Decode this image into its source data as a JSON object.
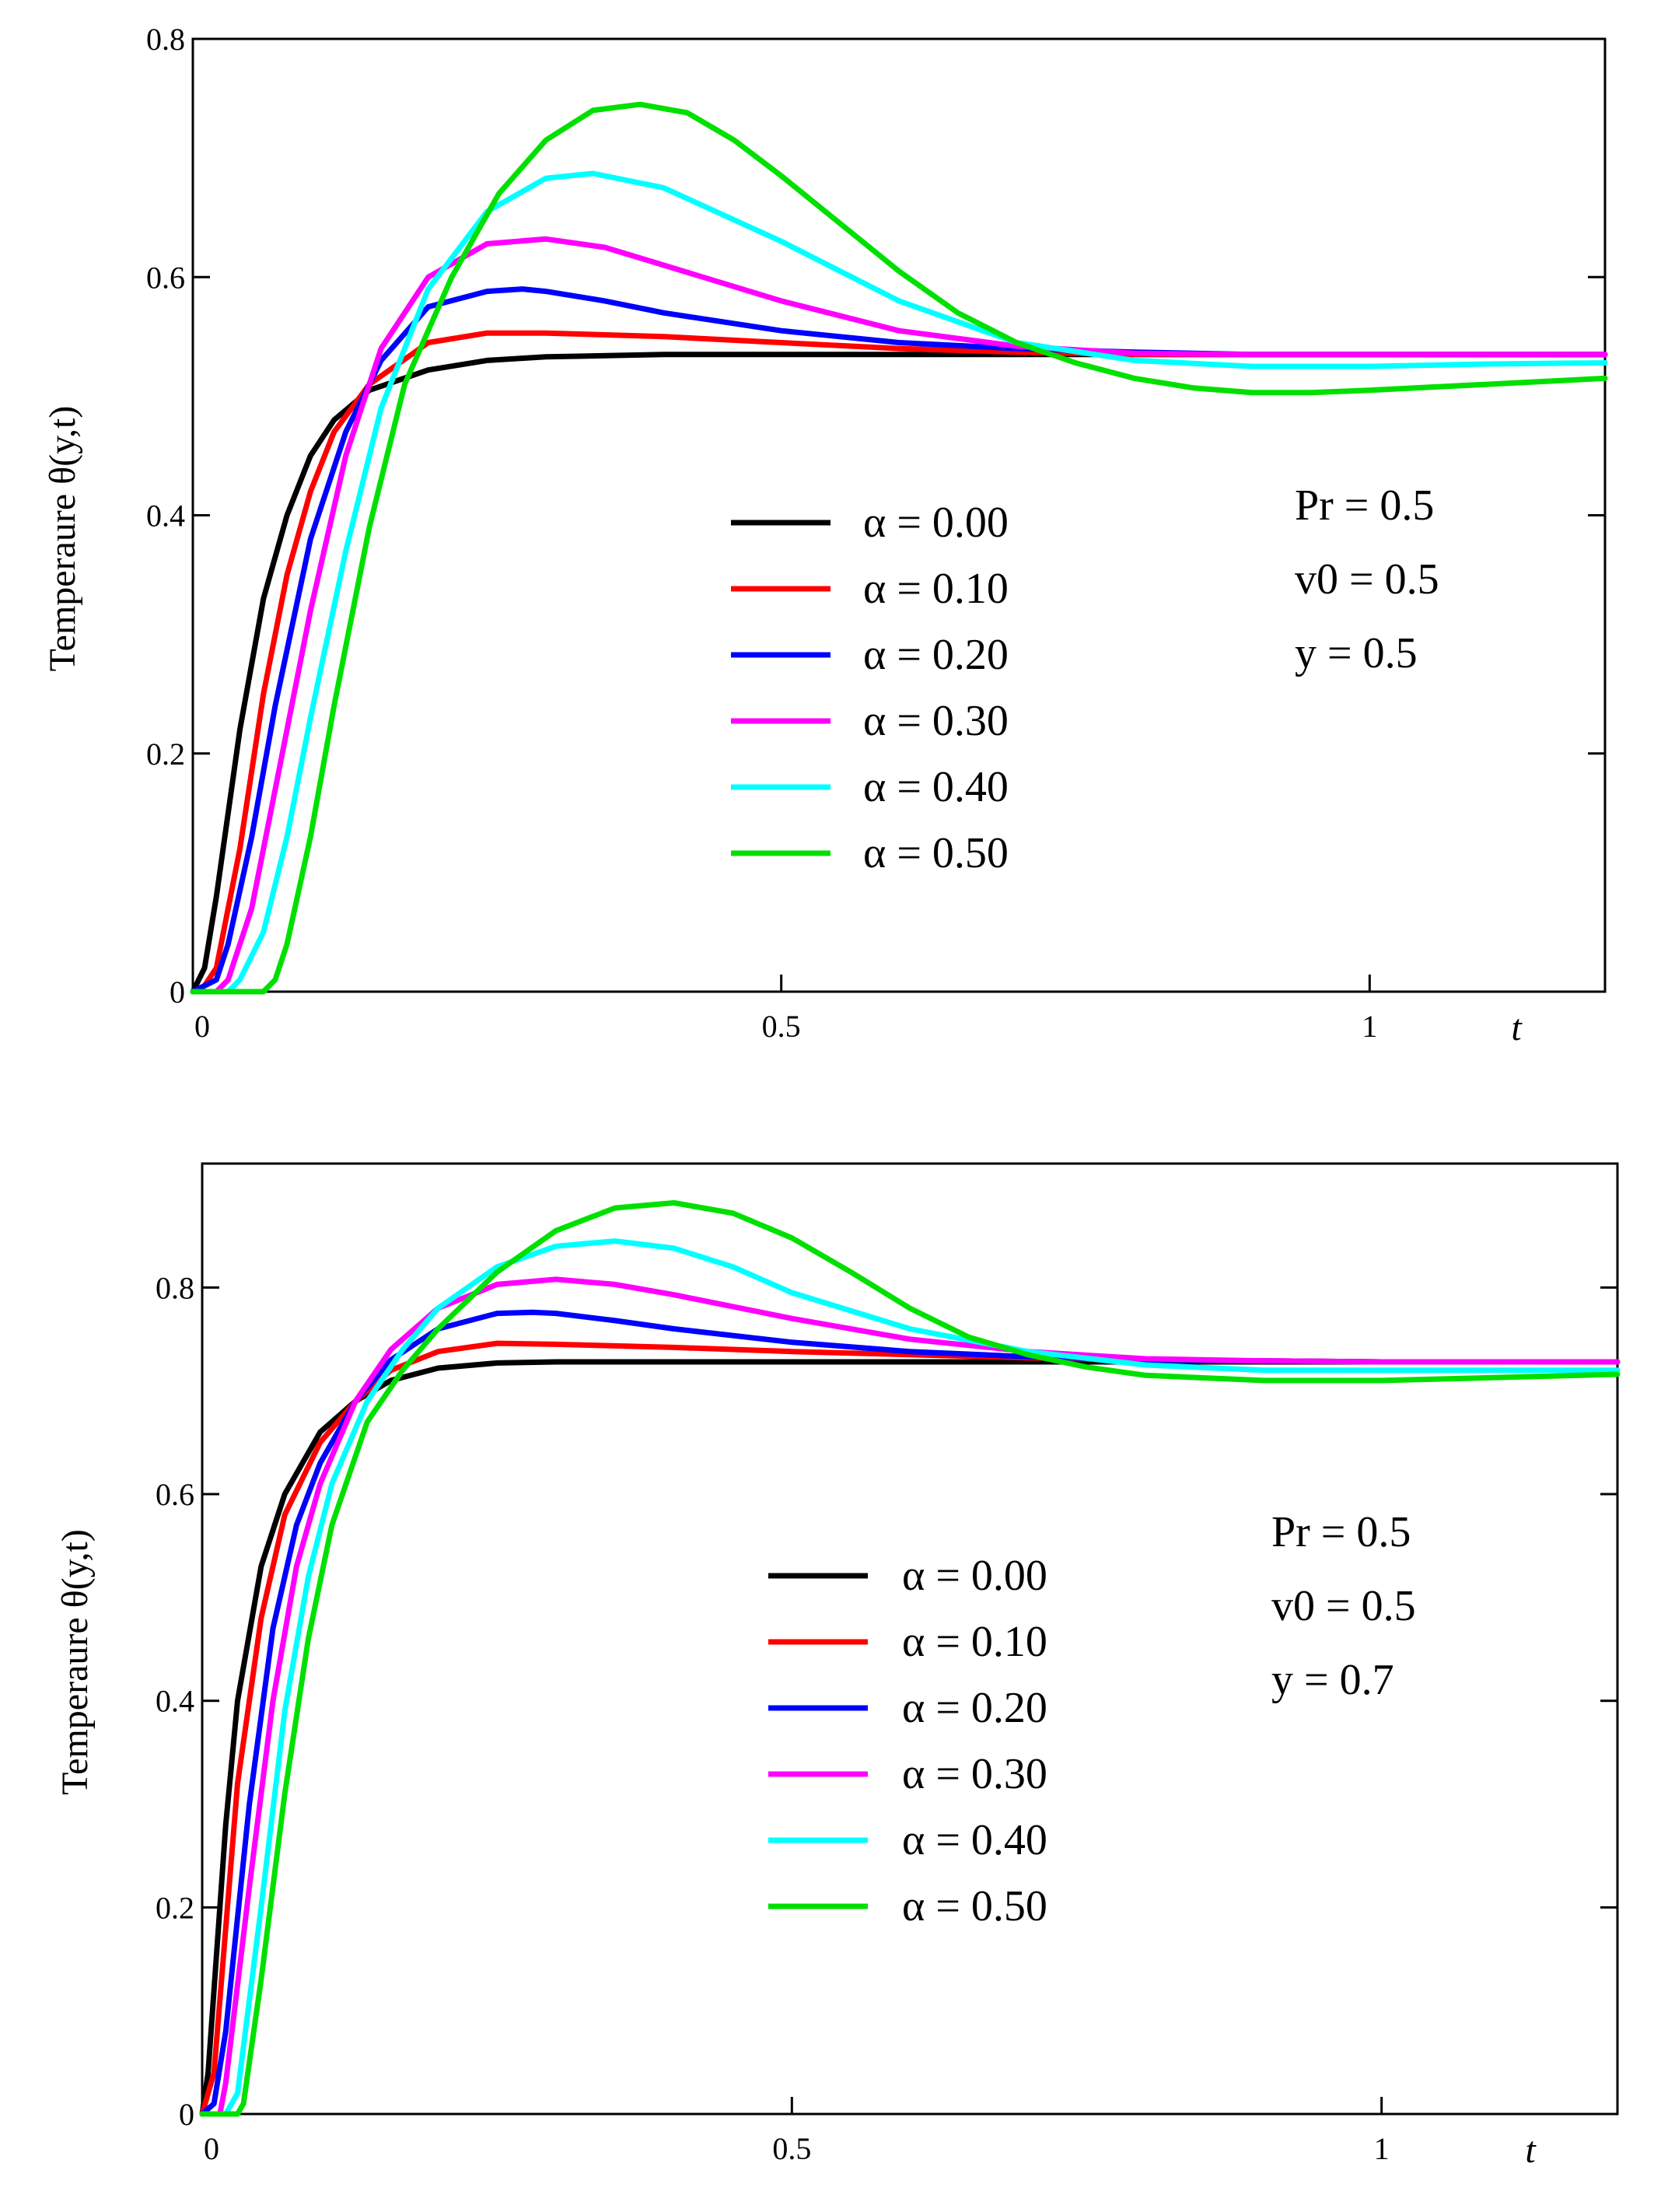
{
  "chart_data": [
    {
      "type": "line",
      "title": "",
      "xlabel": "t",
      "ylabel": "Temperaure θ(y,t)",
      "xlim": [
        0,
        1.2
      ],
      "ylim": [
        0,
        0.8
      ],
      "x_ticks": [
        0,
        0.5,
        1
      ],
      "x_tick_labels": [
        "0",
        "0.5",
        "1"
      ],
      "y_ticks": [
        0,
        0.2,
        0.4,
        0.6,
        0.8
      ],
      "y_tick_labels": [
        "0",
        "0.2",
        "0.4",
        "0.6",
        "0.8"
      ],
      "grid": false,
      "legend_position": "center",
      "params": [
        "Pr = 0.5",
        "v0 = 0.5",
        "y = 0.5"
      ],
      "series": [
        {
          "name": "α = 0.00",
          "color": "#000000",
          "x": [
            0,
            0.01,
            0.02,
            0.04,
            0.06,
            0.08,
            0.1,
            0.12,
            0.15,
            0.2,
            0.25,
            0.3,
            0.4,
            0.5,
            0.6,
            0.7,
            0.8,
            0.9,
            1.0,
            1.1,
            1.2
          ],
          "y": [
            0,
            0.02,
            0.08,
            0.22,
            0.33,
            0.4,
            0.45,
            0.48,
            0.505,
            0.522,
            0.53,
            0.533,
            0.535,
            0.535,
            0.535,
            0.535,
            0.535,
            0.535,
            0.535,
            0.535,
            0.535
          ]
        },
        {
          "name": "α = 0.10",
          "color": "#ff0000",
          "x": [
            0,
            0.01,
            0.02,
            0.04,
            0.06,
            0.08,
            0.1,
            0.12,
            0.15,
            0.2,
            0.25,
            0.3,
            0.4,
            0.5,
            0.6,
            0.7,
            0.8,
            0.9,
            1.0,
            1.1,
            1.2
          ],
          "y": [
            0,
            0.005,
            0.02,
            0.12,
            0.25,
            0.35,
            0.42,
            0.47,
            0.51,
            0.545,
            0.553,
            0.553,
            0.55,
            0.545,
            0.54,
            0.537,
            0.535,
            0.535,
            0.535,
            0.535,
            0.535
          ]
        },
        {
          "name": "α = 0.20",
          "color": "#0000ff",
          "x": [
            0,
            0.02,
            0.03,
            0.05,
            0.07,
            0.1,
            0.13,
            0.16,
            0.2,
            0.25,
            0.28,
            0.3,
            0.35,
            0.4,
            0.5,
            0.6,
            0.7,
            0.8,
            0.9,
            1.0,
            1.1,
            1.2
          ],
          "y": [
            0,
            0.01,
            0.04,
            0.13,
            0.24,
            0.38,
            0.47,
            0.53,
            0.575,
            0.588,
            0.59,
            0.588,
            0.58,
            0.57,
            0.555,
            0.545,
            0.54,
            0.537,
            0.535,
            0.535,
            0.535,
            0.535
          ]
        },
        {
          "name": "α = 0.30",
          "color": "#ff00ff",
          "x": [
            0,
            0.02,
            0.03,
            0.05,
            0.08,
            0.1,
            0.13,
            0.16,
            0.2,
            0.25,
            0.3,
            0.35,
            0.4,
            0.5,
            0.6,
            0.7,
            0.8,
            0.9,
            1.0,
            1.1,
            1.2
          ],
          "y": [
            0,
            0.0,
            0.01,
            0.07,
            0.22,
            0.32,
            0.45,
            0.54,
            0.6,
            0.628,
            0.632,
            0.625,
            0.61,
            0.58,
            0.555,
            0.542,
            0.536,
            0.535,
            0.535,
            0.535,
            0.535
          ]
        },
        {
          "name": "α = 0.40",
          "color": "#00ffff",
          "x": [
            0,
            0.03,
            0.04,
            0.06,
            0.08,
            0.1,
            0.13,
            0.16,
            0.2,
            0.25,
            0.3,
            0.34,
            0.4,
            0.5,
            0.6,
            0.7,
            0.8,
            0.9,
            1.0,
            1.1,
            1.2
          ],
          "y": [
            0,
            0.0,
            0.01,
            0.05,
            0.13,
            0.23,
            0.37,
            0.49,
            0.59,
            0.655,
            0.683,
            0.687,
            0.675,
            0.63,
            0.58,
            0.545,
            0.53,
            0.525,
            0.525,
            0.527,
            0.528
          ]
        },
        {
          "name": "α = 0.50",
          "color": "#00e000",
          "x": [
            0,
            0.04,
            0.06,
            0.07,
            0.08,
            0.1,
            0.12,
            0.15,
            0.18,
            0.22,
            0.26,
            0.3,
            0.34,
            0.38,
            0.42,
            0.46,
            0.5,
            0.55,
            0.6,
            0.65,
            0.7,
            0.75,
            0.8,
            0.85,
            0.9,
            0.95,
            1.0,
            1.1,
            1.2
          ],
          "y": [
            0,
            0.0,
            0.0,
            0.01,
            0.04,
            0.13,
            0.24,
            0.39,
            0.51,
            0.6,
            0.67,
            0.715,
            0.74,
            0.745,
            0.738,
            0.715,
            0.685,
            0.645,
            0.605,
            0.57,
            0.545,
            0.528,
            0.515,
            0.507,
            0.503,
            0.503,
            0.505,
            0.51,
            0.515
          ]
        }
      ]
    },
    {
      "type": "line",
      "title": "",
      "xlabel": "t",
      "ylabel": "Temperaure θ(y,t)",
      "xlim": [
        0,
        1.2
      ],
      "ylim": [
        0,
        0.92
      ],
      "x_ticks": [
        0,
        0.5,
        1
      ],
      "x_tick_labels": [
        "0",
        "0.5",
        "1"
      ],
      "y_ticks": [
        0,
        0.2,
        0.4,
        0.6,
        0.8
      ],
      "y_tick_labels": [
        "0",
        "0.2",
        "0.4",
        "0.6",
        "0.8"
      ],
      "grid": false,
      "legend_position": "center",
      "params": [
        "Pr = 0.5",
        "v0 = 0.5",
        "y = 0.7"
      ],
      "series": [
        {
          "name": "α = 0.00",
          "color": "#000000",
          "x": [
            0,
            0.005,
            0.01,
            0.02,
            0.03,
            0.05,
            0.07,
            0.1,
            0.13,
            0.16,
            0.2,
            0.25,
            0.3,
            0.4,
            0.5,
            0.6,
            0.7,
            0.8,
            0.9,
            1.0,
            1.1,
            1.2
          ],
          "y": [
            0,
            0.04,
            0.12,
            0.28,
            0.4,
            0.53,
            0.6,
            0.66,
            0.69,
            0.71,
            0.722,
            0.727,
            0.728,
            0.728,
            0.728,
            0.728,
            0.728,
            0.728,
            0.728,
            0.728,
            0.728,
            0.728
          ]
        },
        {
          "name": "α = 0.10",
          "color": "#ff0000",
          "x": [
            0,
            0.01,
            0.02,
            0.03,
            0.05,
            0.07,
            0.1,
            0.13,
            0.16,
            0.2,
            0.25,
            0.3,
            0.4,
            0.5,
            0.6,
            0.7,
            0.8,
            0.9,
            1.0,
            1.1,
            1.2
          ],
          "y": [
            0,
            0.04,
            0.18,
            0.32,
            0.48,
            0.58,
            0.65,
            0.69,
            0.72,
            0.738,
            0.746,
            0.745,
            0.742,
            0.738,
            0.735,
            0.732,
            0.73,
            0.729,
            0.728,
            0.728,
            0.728
          ]
        },
        {
          "name": "α = 0.20",
          "color": "#0000ff",
          "x": [
            0,
            0.01,
            0.02,
            0.04,
            0.06,
            0.08,
            0.1,
            0.13,
            0.16,
            0.2,
            0.25,
            0.28,
            0.3,
            0.35,
            0.4,
            0.5,
            0.6,
            0.7,
            0.8,
            0.9,
            1.0,
            1.2
          ],
          "y": [
            0,
            0.01,
            0.08,
            0.3,
            0.47,
            0.57,
            0.63,
            0.69,
            0.73,
            0.76,
            0.775,
            0.776,
            0.775,
            0.768,
            0.76,
            0.747,
            0.738,
            0.733,
            0.73,
            0.729,
            0.728,
            0.728
          ]
        },
        {
          "name": "α = 0.30",
          "color": "#ff00ff",
          "x": [
            0,
            0.015,
            0.02,
            0.04,
            0.06,
            0.08,
            0.1,
            0.13,
            0.16,
            0.2,
            0.25,
            0.3,
            0.35,
            0.4,
            0.5,
            0.6,
            0.7,
            0.8,
            0.9,
            1.0,
            1.2
          ],
          "y": [
            0,
            0.0,
            0.03,
            0.22,
            0.4,
            0.53,
            0.61,
            0.69,
            0.74,
            0.78,
            0.803,
            0.808,
            0.803,
            0.793,
            0.77,
            0.75,
            0.738,
            0.731,
            0.729,
            0.728,
            0.728
          ]
        },
        {
          "name": "α = 0.40",
          "color": "#00ffff",
          "x": [
            0,
            0.02,
            0.03,
            0.05,
            0.07,
            0.09,
            0.11,
            0.14,
            0.17,
            0.2,
            0.25,
            0.3,
            0.35,
            0.4,
            0.45,
            0.5,
            0.6,
            0.7,
            0.8,
            0.9,
            1.0,
            1.1,
            1.2
          ],
          "y": [
            0,
            0.0,
            0.02,
            0.2,
            0.39,
            0.52,
            0.61,
            0.69,
            0.74,
            0.78,
            0.82,
            0.84,
            0.845,
            0.838,
            0.82,
            0.795,
            0.76,
            0.738,
            0.725,
            0.72,
            0.72,
            0.72,
            0.72
          ]
        },
        {
          "name": "α = 0.50",
          "color": "#00e000",
          "x": [
            0,
            0.03,
            0.035,
            0.05,
            0.07,
            0.09,
            0.11,
            0.14,
            0.17,
            0.2,
            0.25,
            0.3,
            0.35,
            0.4,
            0.45,
            0.5,
            0.55,
            0.6,
            0.65,
            0.7,
            0.75,
            0.8,
            0.9,
            1.0,
            1.1,
            1.2
          ],
          "y": [
            0,
            0.0,
            0.01,
            0.13,
            0.31,
            0.46,
            0.57,
            0.67,
            0.72,
            0.76,
            0.815,
            0.855,
            0.877,
            0.882,
            0.872,
            0.848,
            0.815,
            0.78,
            0.752,
            0.735,
            0.723,
            0.715,
            0.71,
            0.71,
            0.713,
            0.716
          ]
        }
      ]
    }
  ]
}
